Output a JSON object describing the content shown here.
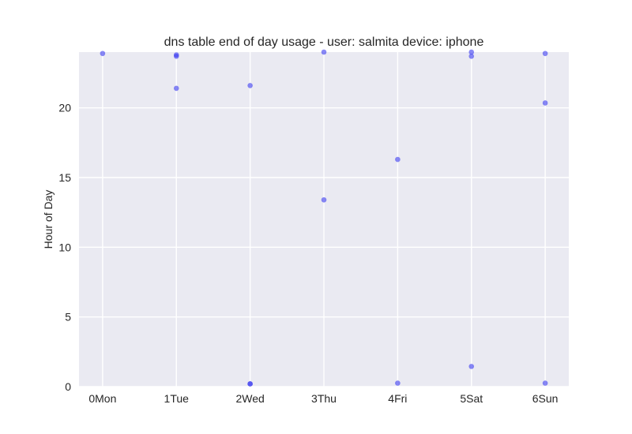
{
  "chart_data": {
    "type": "scatter",
    "title": "dns table end of day usage -  user: salmita device: iphone",
    "xlabel": "",
    "ylabel": "Hour of Day",
    "x_tick_labels": [
      "0Mon",
      "1Tue",
      "2Wed",
      "3Thu",
      "4Fri",
      "5Sat",
      "6Sun"
    ],
    "xlim": [
      -0.32,
      6.32
    ],
    "ylim": [
      0,
      24
    ],
    "y_ticks": [
      0,
      5,
      10,
      15,
      20
    ],
    "grid": true,
    "background": "#eaeaf2",
    "grid_color": "#ffffff",
    "point_color": "#3b3bf0",
    "points": [
      {
        "x": 0,
        "y": 23.9
      },
      {
        "x": 1,
        "y": 23.8
      },
      {
        "x": 1,
        "y": 23.7
      },
      {
        "x": 1,
        "y": 21.4
      },
      {
        "x": 2,
        "y": 21.6
      },
      {
        "x": 2,
        "y": 0.2
      },
      {
        "x": 2,
        "y": 0.2
      },
      {
        "x": 3,
        "y": 24.0
      },
      {
        "x": 3,
        "y": 13.4
      },
      {
        "x": 4,
        "y": 16.3
      },
      {
        "x": 4,
        "y": 0.25
      },
      {
        "x": 5,
        "y": 24.0
      },
      {
        "x": 5,
        "y": 23.7
      },
      {
        "x": 5,
        "y": 1.45
      },
      {
        "x": 6,
        "y": 23.9
      },
      {
        "x": 6,
        "y": 20.35
      },
      {
        "x": 6,
        "y": 0.25
      }
    ]
  }
}
